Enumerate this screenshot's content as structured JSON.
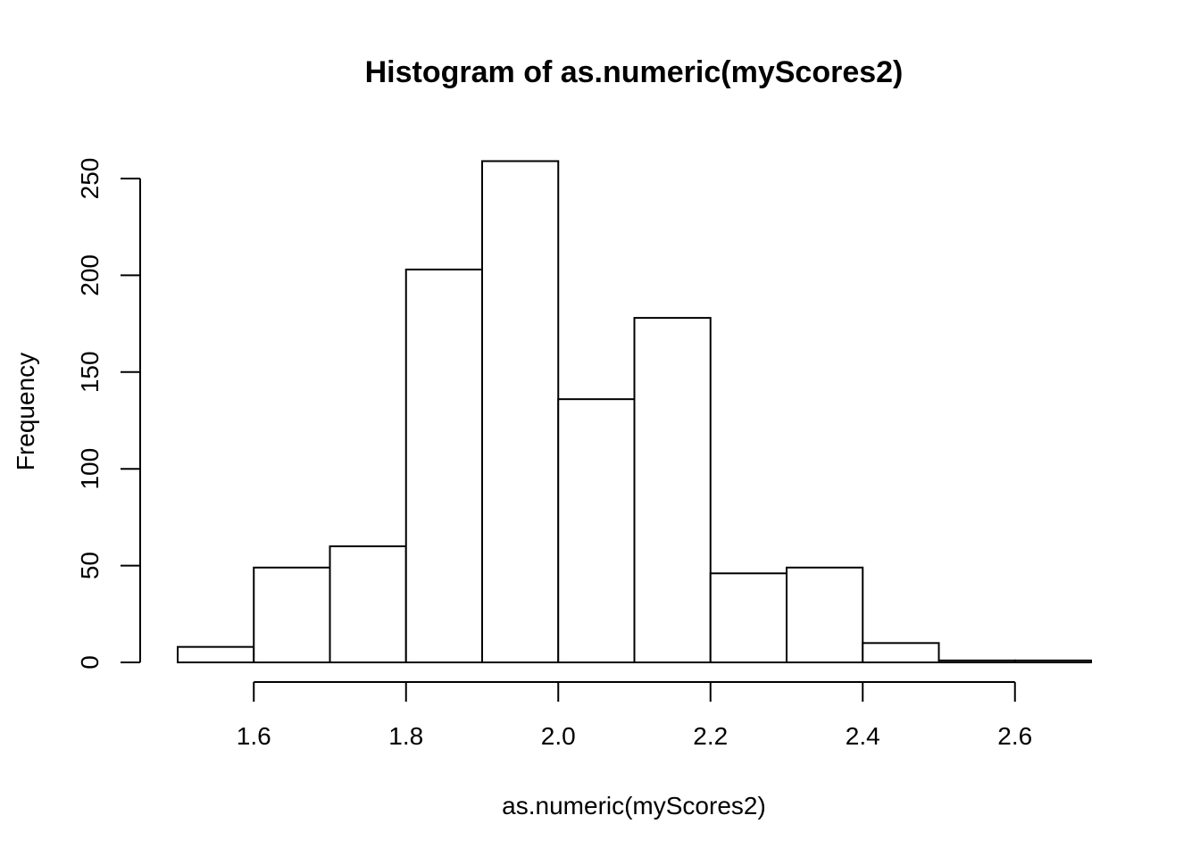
{
  "chart_data": {
    "type": "bar",
    "title": "Histogram of as.numeric(myScores2)",
    "xlabel": "as.numeric(myScores2)",
    "ylabel": "Frequency",
    "bins": [
      {
        "x0": 1.5,
        "x1": 1.6,
        "count": 8
      },
      {
        "x0": 1.6,
        "x1": 1.7,
        "count": 49
      },
      {
        "x0": 1.7,
        "x1": 1.8,
        "count": 60
      },
      {
        "x0": 1.8,
        "x1": 1.9,
        "count": 203
      },
      {
        "x0": 1.9,
        "x1": 2.0,
        "count": 259
      },
      {
        "x0": 2.0,
        "x1": 2.1,
        "count": 136
      },
      {
        "x0": 2.1,
        "x1": 2.2,
        "count": 178
      },
      {
        "x0": 2.2,
        "x1": 2.3,
        "count": 46
      },
      {
        "x0": 2.3,
        "x1": 2.4,
        "count": 49
      },
      {
        "x0": 2.4,
        "x1": 2.5,
        "count": 10
      },
      {
        "x0": 2.5,
        "x1": 2.6,
        "count": 1
      },
      {
        "x0": 2.6,
        "x1": 2.7,
        "count": 1
      }
    ],
    "x_ticks": [
      1.6,
      1.8,
      2.0,
      2.2,
      2.4,
      2.6
    ],
    "x_tick_labels": [
      "1.6",
      "1.8",
      "2.0",
      "2.2",
      "2.4",
      "2.6"
    ],
    "y_ticks": [
      0,
      50,
      100,
      150,
      200,
      250
    ],
    "y_tick_labels": [
      "0",
      "50",
      "100",
      "150",
      "200",
      "250"
    ],
    "xlim": [
      1.5,
      2.7
    ],
    "ylim": [
      0,
      259
    ],
    "grid": false,
    "legend": "none",
    "colors": {
      "bar_fill": "#ffffff",
      "bar_stroke": "#000000"
    }
  }
}
